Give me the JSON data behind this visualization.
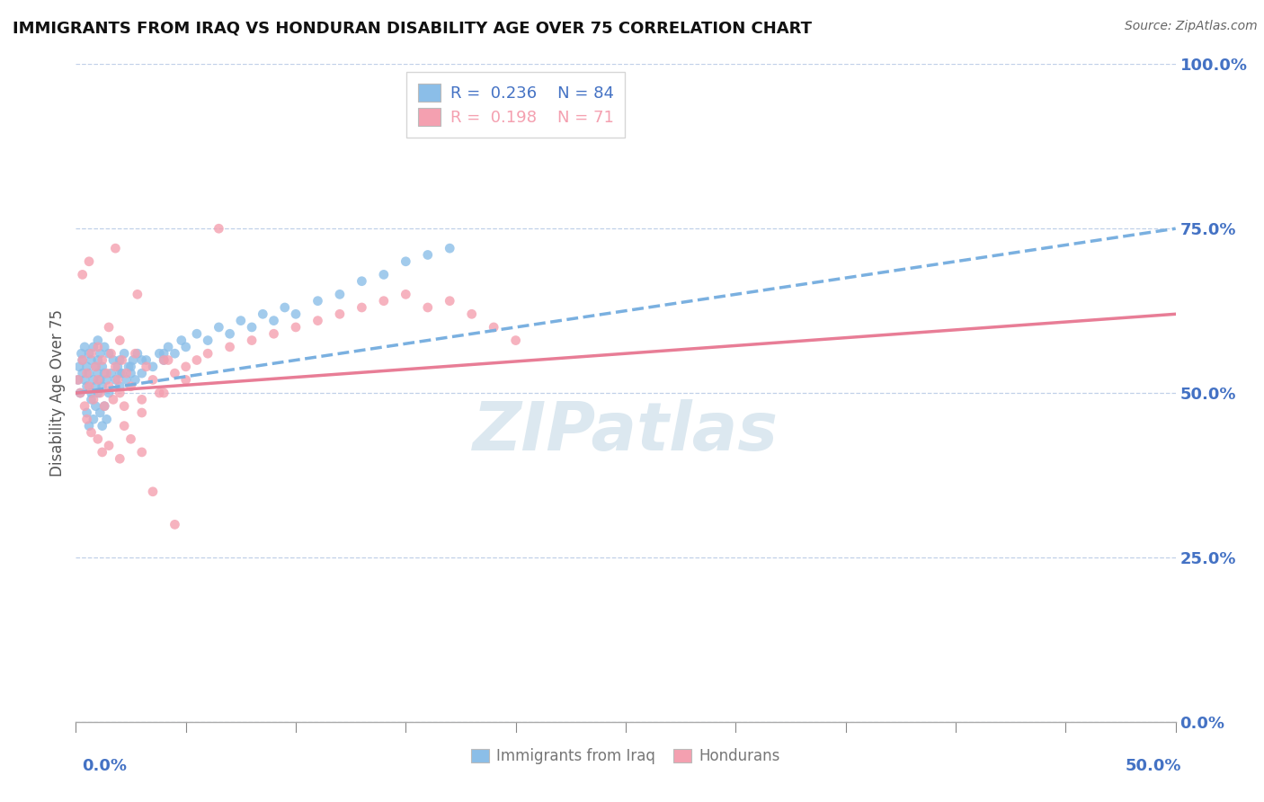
{
  "title": "IMMIGRANTS FROM IRAQ VS HONDURAN DISABILITY AGE OVER 75 CORRELATION CHART",
  "source": "Source: ZipAtlas.com",
  "ylabel_label": "Disability Age Over 75",
  "legend_label_1": "Immigrants from Iraq",
  "legend_label_2": "Hondurans",
  "R1": 0.236,
  "N1": 84,
  "R2": 0.198,
  "N2": 71,
  "color_iraq": "#8bbee8",
  "color_honduran": "#f4a0b0",
  "color_axis_labels": "#4472c4",
  "color_trend_iraq": "#7ab0e0",
  "color_trend_honduran": "#e87d96",
  "background_color": "#ffffff",
  "watermark_text": "ZIPatlas",
  "watermark_color": "#dce8f0",
  "xmin": 0.0,
  "xmax": 50.0,
  "ymin": 0.0,
  "ymax": 100.0,
  "yticks": [
    0,
    25,
    50,
    75,
    100
  ],
  "ytick_labels": [
    "0.0%",
    "25.0%",
    "50.0%",
    "75.0%",
    "100.0%"
  ],
  "xtick_left_label": "0.0%",
  "xtick_right_label": "50.0%",
  "iraq_x": [
    0.1,
    0.15,
    0.2,
    0.25,
    0.3,
    0.3,
    0.4,
    0.4,
    0.5,
    0.5,
    0.6,
    0.6,
    0.7,
    0.7,
    0.8,
    0.8,
    0.9,
    0.9,
    1.0,
    1.0,
    1.0,
    1.1,
    1.1,
    1.2,
    1.2,
    1.3,
    1.3,
    1.4,
    1.5,
    1.5,
    1.6,
    1.7,
    1.8,
    1.9,
    2.0,
    2.0,
    2.1,
    2.2,
    2.3,
    2.4,
    2.5,
    2.6,
    2.7,
    2.8,
    3.0,
    3.2,
    3.5,
    3.8,
    4.0,
    4.2,
    4.5,
    4.8,
    5.0,
    5.5,
    6.0,
    6.5,
    7.0,
    7.5,
    8.0,
    8.5,
    9.0,
    9.5,
    10.0,
    11.0,
    12.0,
    13.0,
    14.0,
    15.0,
    16.0,
    17.0,
    0.5,
    0.6,
    0.7,
    0.8,
    0.9,
    1.0,
    1.1,
    1.2,
    1.3,
    1.4,
    2.0,
    2.5,
    3.0,
    4.0
  ],
  "iraq_y": [
    52,
    54,
    50,
    56,
    53,
    55,
    52,
    57,
    51,
    54,
    53,
    56,
    50,
    55,
    52,
    57,
    51,
    54,
    53,
    55,
    58,
    52,
    56,
    51,
    54,
    53,
    57,
    52,
    50,
    56,
    53,
    55,
    52,
    54,
    51,
    55,
    53,
    56,
    52,
    54,
    53,
    55,
    52,
    56,
    53,
    55,
    54,
    56,
    55,
    57,
    56,
    58,
    57,
    59,
    58,
    60,
    59,
    61,
    60,
    62,
    61,
    63,
    62,
    64,
    65,
    67,
    68,
    70,
    71,
    72,
    47,
    45,
    49,
    46,
    48,
    50,
    47,
    45,
    48,
    46,
    53,
    54,
    55,
    56
  ],
  "honduran_x": [
    0.1,
    0.2,
    0.3,
    0.4,
    0.5,
    0.6,
    0.7,
    0.8,
    0.9,
    1.0,
    1.0,
    1.1,
    1.2,
    1.3,
    1.4,
    1.5,
    1.6,
    1.7,
    1.8,
    1.9,
    2.0,
    2.1,
    2.2,
    2.3,
    2.5,
    2.7,
    3.0,
    3.2,
    3.5,
    3.8,
    4.0,
    4.5,
    5.0,
    5.5,
    6.0,
    7.0,
    8.0,
    9.0,
    10.0,
    11.0,
    12.0,
    13.0,
    14.0,
    15.0,
    16.0,
    17.0,
    18.0,
    19.0,
    20.0,
    0.5,
    0.7,
    1.0,
    1.2,
    1.5,
    2.0,
    2.5,
    3.0,
    0.3,
    0.6,
    1.8,
    2.8,
    4.2,
    6.5,
    3.5,
    4.5,
    2.2,
    3.0,
    1.5,
    2.0,
    4.0,
    5.0
  ],
  "honduran_y": [
    52,
    50,
    55,
    48,
    53,
    51,
    56,
    49,
    54,
    52,
    57,
    50,
    55,
    48,
    53,
    51,
    56,
    49,
    54,
    52,
    50,
    55,
    48,
    53,
    51,
    56,
    49,
    54,
    52,
    50,
    55,
    53,
    54,
    55,
    56,
    57,
    58,
    59,
    60,
    61,
    62,
    63,
    64,
    65,
    63,
    64,
    62,
    60,
    58,
    46,
    44,
    43,
    41,
    42,
    40,
    43,
    41,
    68,
    70,
    72,
    65,
    55,
    75,
    35,
    30,
    45,
    47,
    60,
    58,
    50,
    52
  ],
  "trend_iraq_x0": 0.0,
  "trend_iraq_x1": 50.0,
  "trend_iraq_y0": 50.0,
  "trend_iraq_y1": 75.0,
  "trend_hond_x0": 0.0,
  "trend_hond_x1": 50.0,
  "trend_hond_y0": 50.0,
  "trend_hond_y1": 62.0
}
